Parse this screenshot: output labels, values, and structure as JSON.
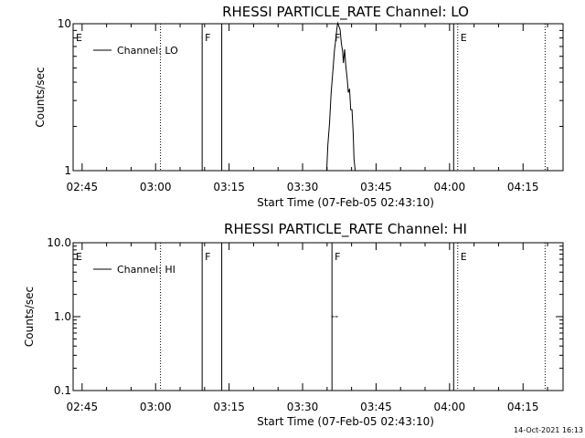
{
  "stamp": "14-Oct-2021 16:13",
  "chart_data": [
    {
      "type": "line",
      "title": "RHESSI PARTICLE_RATE Channel: LO",
      "xlabel": "Start Time (07-Feb-05 02:43:10)",
      "ylabel": "Counts/sec",
      "yscale": "log",
      "ylim": [
        1,
        10
      ],
      "yticks": [
        1,
        10
      ],
      "ytick_labels": [
        "1",
        "10"
      ],
      "xlim": [
        "02:43:10",
        "04:23:10"
      ],
      "xticks": [
        "02:45",
        "03:00",
        "03:15",
        "03:30",
        "03:45",
        "04:00",
        "04:15"
      ],
      "legend": "Channel: LO",
      "legend_loc": "top-left",
      "markers": [
        {
          "time": "02:43:10",
          "label": "E",
          "style": "solid"
        },
        {
          "time": "03:01:00",
          "label": "",
          "style": "dotted"
        },
        {
          "time": "03:09:30",
          "label": "F",
          "style": "solid"
        },
        {
          "time": "03:13:30",
          "label": "",
          "style": "solid"
        },
        {
          "time": "03:36:00",
          "label": "F",
          "style": "none"
        },
        {
          "time": "04:00:50",
          "label": "",
          "style": "solid"
        },
        {
          "time": "04:01:40",
          "label": "E",
          "style": "dotted"
        },
        {
          "time": "04:19:30",
          "label": "",
          "style": "dotted"
        }
      ],
      "series": [
        {
          "name": "Channel: LO",
          "x": [
            "03:34:55",
            "03:35:10",
            "03:35:30",
            "03:35:50",
            "03:36:10",
            "03:36:30",
            "03:36:45",
            "03:37:00",
            "03:37:10",
            "03:37:25",
            "03:37:40",
            "03:37:55",
            "03:38:10",
            "03:38:20",
            "03:38:35",
            "03:38:50",
            "03:39:05",
            "03:39:20",
            "03:39:35",
            "03:39:50",
            "03:40:05",
            "03:40:20",
            "03:40:30",
            "03:40:45"
          ],
          "y": [
            1.0,
            1.5,
            2.1,
            3.4,
            4.7,
            6.6,
            7.7,
            9.2,
            10.1,
            9.6,
            9.1,
            7.3,
            6.5,
            5.4,
            6.7,
            5.1,
            4.3,
            3.4,
            3.6,
            2.6,
            2.6,
            1.8,
            1.2,
            1.0
          ]
        }
      ]
    },
    {
      "type": "line",
      "title": "RHESSI PARTICLE_RATE Channel: HI",
      "xlabel": "Start Time (07-Feb-05 02:43:10)",
      "ylabel": "Counts/sec",
      "yscale": "log",
      "ylim": [
        0.1,
        10.0
      ],
      "yticks": [
        0.1,
        1.0,
        10.0
      ],
      "ytick_labels": [
        "0.1",
        "1.0",
        "10.0"
      ],
      "xlim": [
        "02:43:10",
        "04:23:10"
      ],
      "xticks": [
        "02:45",
        "03:00",
        "03:15",
        "03:30",
        "03:45",
        "04:00",
        "04:15"
      ],
      "legend": "Channel: HI",
      "legend_loc": "top-left",
      "markers": [
        {
          "time": "02:43:10",
          "label": "E",
          "style": "solid"
        },
        {
          "time": "03:01:00",
          "label": "",
          "style": "dotted"
        },
        {
          "time": "03:09:30",
          "label": "F",
          "style": "solid"
        },
        {
          "time": "03:13:30",
          "label": "",
          "style": "solid"
        },
        {
          "time": "03:36:00",
          "label": "F",
          "style": "solid"
        },
        {
          "time": "04:00:50",
          "label": "",
          "style": "solid"
        },
        {
          "time": "04:01:40",
          "label": "E",
          "style": "dotted"
        },
        {
          "time": "04:19:30",
          "label": "",
          "style": "dotted"
        }
      ],
      "series": [
        {
          "name": "Channel: HI",
          "points": [
            {
              "x": "03:36:10",
              "y": 1.0
            },
            {
              "x": "03:36:55",
              "y": 1.0
            }
          ]
        }
      ]
    }
  ]
}
